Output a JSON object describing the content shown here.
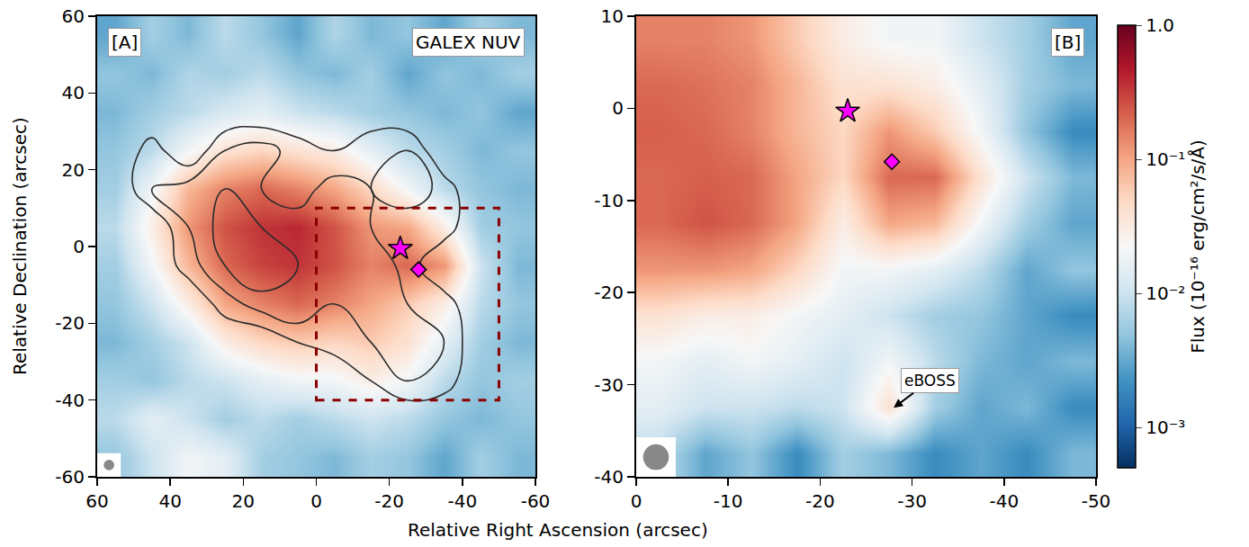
{
  "chart_data": {
    "type": "heatmap",
    "xlabel": "Relative Right Ascension (arcsec)",
    "ylabel": "Relative Declination (arcsec)",
    "colorbar": {
      "title": "Flux (10⁻¹⁶ erg/cm²/s/Å)",
      "log": true,
      "range": [
        0.0005,
        1
      ],
      "ticks": [
        {
          "value": 0.001,
          "label": "10⁻³"
        },
        {
          "value": 0.01,
          "label": "10⁻²"
        },
        {
          "value": 0.1,
          "label": "10⁻¹"
        },
        {
          "value": 1,
          "label": "1.0"
        }
      ]
    },
    "panels": [
      {
        "label": "[A]",
        "title": "GALEX NUV",
        "xlim": [
          60,
          -60
        ],
        "xticks": [
          60,
          40,
          20,
          0,
          -20,
          -40,
          -60
        ],
        "ylim": [
          -60,
          60
        ],
        "yticks": [
          -60,
          -40,
          -20,
          0,
          20,
          40,
          60
        ],
        "x": [
          55,
          45,
          35,
          25,
          15,
          5,
          -5,
          -15,
          -25,
          -35,
          -45,
          -55
        ],
        "y": [
          -55,
          -45,
          -35,
          -25,
          -15,
          -5,
          5,
          15,
          25,
          35,
          45,
          55
        ],
        "cells": [
          [
            0.005,
            0.01,
            0.02,
            0.015,
            0.006,
            0.005,
            0.004,
            0.006,
            0.005,
            0.003,
            0.006,
            0.004
          ],
          [
            0.008,
            0.015,
            0.01,
            0.006,
            0.008,
            0.006,
            0.008,
            0.01,
            0.008,
            0.005,
            0.004,
            0.005
          ],
          [
            0.006,
            0.005,
            0.008,
            0.01,
            0.015,
            0.02,
            0.02,
            0.03,
            0.02,
            0.008,
            0.005,
            0.006
          ],
          [
            0.004,
            0.006,
            0.01,
            0.03,
            0.05,
            0.06,
            0.05,
            0.06,
            0.04,
            0.015,
            0.006,
            0.004
          ],
          [
            0.005,
            0.01,
            0.03,
            0.1,
            0.15,
            0.2,
            0.15,
            0.1,
            0.06,
            0.03,
            0.008,
            0.005
          ],
          [
            0.006,
            0.02,
            0.08,
            0.2,
            0.3,
            0.35,
            0.25,
            0.15,
            0.2,
            0.12,
            0.01,
            0.004
          ],
          [
            0.008,
            0.03,
            0.12,
            0.25,
            0.35,
            0.4,
            0.25,
            0.12,
            0.1,
            0.03,
            0.006,
            0.005
          ],
          [
            0.006,
            0.02,
            0.08,
            0.15,
            0.2,
            0.15,
            0.1,
            0.05,
            0.02,
            0.008,
            0.005,
            0.004
          ],
          [
            0.005,
            0.008,
            0.02,
            0.04,
            0.05,
            0.04,
            0.03,
            0.015,
            0.008,
            0.006,
            0.004,
            0.005
          ],
          [
            0.004,
            0.006,
            0.008,
            0.012,
            0.015,
            0.01,
            0.008,
            0.006,
            0.005,
            0.004,
            0.005,
            0.003
          ],
          [
            0.005,
            0.004,
            0.007,
            0.006,
            0.008,
            0.005,
            0.004,
            0.006,
            0.003,
            0.005,
            0.004,
            0.006
          ],
          [
            0.003,
            0.006,
            0.004,
            0.008,
            0.005,
            0.003,
            0.007,
            0.004,
            0.005,
            0.003,
            0.006,
            0.004
          ]
        ],
        "contours": {
          "levels": [
            1,
            2,
            3,
            4
          ],
          "z": [
            [
              0,
              0,
              0,
              0,
              0,
              0,
              0,
              0,
              0,
              0,
              0,
              0
            ],
            [
              0,
              0,
              0,
              0,
              0,
              0,
              0,
              0,
              0,
              0,
              0,
              0
            ],
            [
              0,
              0,
              0,
              0,
              0,
              0,
              0,
              1,
              2,
              1.5,
              0,
              0
            ],
            [
              0,
              0,
              0,
              0,
              0,
              1,
              1.5,
              2,
              2.5,
              2,
              0,
              0
            ],
            [
              0,
              0,
              0,
              1.5,
              2.5,
              3,
              2,
              2.5,
              2,
              1.5,
              0,
              0
            ],
            [
              0,
              0,
              1.5,
              3,
              4,
              3,
              2.5,
              3,
              1.5,
              0,
              0,
              0
            ],
            [
              0,
              0,
              2,
              3.5,
              3,
              2.5,
              3,
              2,
              1,
              1.5,
              0,
              0
            ],
            [
              0,
              2,
              2.5,
              3,
              2,
              1.5,
              2.5,
              2,
              3,
              1.5,
              0,
              0
            ],
            [
              0,
              1.5,
              0,
              2,
              2.5,
              1.5,
              1,
              2,
              2,
              0,
              0,
              0
            ],
            [
              0,
              0,
              0,
              0,
              0,
              0,
              0,
              0,
              0,
              0,
              0,
              0
            ],
            [
              0,
              0,
              0,
              0,
              0,
              0,
              0,
              0,
              0,
              0,
              0,
              0
            ],
            [
              0,
              0,
              0,
              0,
              0,
              0,
              0,
              0,
              0,
              0,
              0,
              0
            ]
          ]
        },
        "zoom_box": {
          "x": [
            0,
            -50
          ],
          "y": [
            -40,
            10
          ],
          "color": "#8b0000",
          "line_style": "dashed"
        },
        "points": [
          {
            "x": -23,
            "y": -0.5,
            "marker": "star",
            "color": "#ff00ff"
          },
          {
            "x": -28,
            "y": -6,
            "marker": "diamond",
            "color": "#ff00ff"
          }
        ]
      },
      {
        "label": "[B]",
        "xlim": [
          0,
          -50
        ],
        "xticks": [
          0,
          -10,
          -20,
          -30,
          -40,
          -50
        ],
        "ylim": [
          -40,
          10
        ],
        "yticks": [
          -40,
          -30,
          -20,
          -10,
          0,
          10
        ],
        "x": [
          -2.5,
          -7.5,
          -12.5,
          -17.5,
          -22.5,
          -27.5,
          -32.5,
          -37.5,
          -42.5,
          -47.5
        ],
        "y": [
          -37.5,
          -32.5,
          -27.5,
          -22.5,
          -17.5,
          -12.5,
          -7.5,
          -2.5,
          2.5,
          7.5
        ],
        "cells": [
          [
            0.008,
            0.003,
            0.005,
            0.002,
            0.006,
            0.004,
            0.002,
            0.003,
            0.002,
            0.004
          ],
          [
            0.015,
            0.01,
            0.01,
            0.008,
            0.01,
            0.04,
            0.006,
            0.003,
            0.004,
            0.002
          ],
          [
            0.02,
            0.015,
            0.02,
            0.015,
            0.01,
            0.02,
            0.008,
            0.004,
            0.003,
            0.004
          ],
          [
            0.04,
            0.03,
            0.03,
            0.02,
            0.015,
            0.01,
            0.006,
            0.005,
            0.003,
            0.002
          ],
          [
            0.12,
            0.12,
            0.1,
            0.05,
            0.02,
            0.02,
            0.015,
            0.008,
            0.003,
            0.005
          ],
          [
            0.2,
            0.25,
            0.2,
            0.1,
            0.03,
            0.1,
            0.08,
            0.02,
            0.006,
            0.003
          ],
          [
            0.2,
            0.22,
            0.2,
            0.1,
            0.05,
            0.2,
            0.2,
            0.04,
            0.01,
            0.004
          ],
          [
            0.22,
            0.2,
            0.15,
            0.08,
            0.05,
            0.12,
            0.06,
            0.02,
            0.005,
            0.002
          ],
          [
            0.2,
            0.18,
            0.15,
            0.08,
            0.04,
            0.04,
            0.03,
            0.015,
            0.006,
            0.004
          ],
          [
            0.15,
            0.15,
            0.12,
            0.06,
            0.03,
            0.02,
            0.02,
            0.01,
            0.006,
            0.003
          ]
        ],
        "points": [
          {
            "x": -23,
            "y": -0.3,
            "marker": "star",
            "color": "#ff00ff"
          },
          {
            "x": -27.8,
            "y": -5.8,
            "marker": "diamond",
            "color": "#ff00ff"
          }
        ],
        "annotation": {
          "text": "eBOSS",
          "x": -28,
          "y": -32.5
        }
      }
    ]
  }
}
